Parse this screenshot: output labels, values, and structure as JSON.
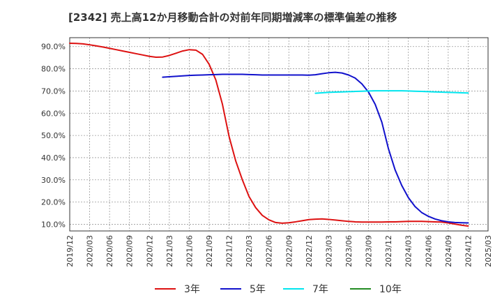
{
  "chart_data": {
    "type": "line",
    "title": "[2342]  売上高12か月移動合計の対前年同期増減率の標準偏差の推移",
    "xlabel": "",
    "ylabel": "",
    "ylim": [
      7,
      94
    ],
    "y_ticks": [
      10,
      20,
      30,
      40,
      50,
      60,
      70,
      80,
      90
    ],
    "y_tick_labels": [
      "10.0%",
      "20.0%",
      "30.0%",
      "40.0%",
      "50.0%",
      "60.0%",
      "70.0%",
      "80.0%",
      "90.0%"
    ],
    "x_ticks": [
      "2019/12",
      "2020/03",
      "2020/06",
      "2020/09",
      "2020/12",
      "2021/03",
      "2021/06",
      "2021/09",
      "2021/12",
      "2022/03",
      "2022/06",
      "2022/09",
      "2022/12",
      "2023/03",
      "2023/06",
      "2023/09",
      "2023/12",
      "2024/03",
      "2024/06",
      "2024/09",
      "2024/12",
      "2025/03"
    ],
    "series": [
      {
        "name": "3年",
        "color": "#dd1111",
        "points": [
          [
            "2019/12",
            91.5
          ],
          [
            "2020/01",
            91.4
          ],
          [
            "2020/02",
            91.2
          ],
          [
            "2020/03",
            90.8
          ],
          [
            "2020/04",
            90.3
          ],
          [
            "2020/05",
            89.8
          ],
          [
            "2020/06",
            89.2
          ],
          [
            "2020/07",
            88.6
          ],
          [
            "2020/08",
            88.0
          ],
          [
            "2020/09",
            87.4
          ],
          [
            "2020/10",
            86.8
          ],
          [
            "2020/11",
            86.2
          ],
          [
            "2020/12",
            85.6
          ],
          [
            "2021/01",
            85.2
          ],
          [
            "2021/02",
            85.3
          ],
          [
            "2021/03",
            86.0
          ],
          [
            "2021/04",
            87.0
          ],
          [
            "2021/05",
            88.0
          ],
          [
            "2021/06",
            88.6
          ],
          [
            "2021/07",
            88.4
          ],
          [
            "2021/08",
            86.5
          ],
          [
            "2021/09",
            82.0
          ],
          [
            "2021/10",
            75.0
          ],
          [
            "2021/11",
            64.0
          ],
          [
            "2021/12",
            49.5
          ],
          [
            "2022/01",
            38.5
          ],
          [
            "2022/02",
            30.0
          ],
          [
            "2022/03",
            22.5
          ],
          [
            "2022/04",
            17.5
          ],
          [
            "2022/05",
            14.0
          ],
          [
            "2022/06",
            12.0
          ],
          [
            "2022/07",
            10.8
          ],
          [
            "2022/08",
            10.5
          ],
          [
            "2022/09",
            10.7
          ],
          [
            "2022/10",
            11.1
          ],
          [
            "2022/11",
            11.6
          ],
          [
            "2022/12",
            12.1
          ],
          [
            "2023/01",
            12.3
          ],
          [
            "2023/02",
            12.4
          ],
          [
            "2023/03",
            12.2
          ],
          [
            "2023/04",
            11.9
          ],
          [
            "2023/05",
            11.6
          ],
          [
            "2023/06",
            11.3
          ],
          [
            "2023/07",
            11.1
          ],
          [
            "2023/08",
            11.0
          ],
          [
            "2023/09",
            11.0
          ],
          [
            "2023/10",
            11.0
          ],
          [
            "2023/11",
            11.0
          ],
          [
            "2023/12",
            11.1
          ],
          [
            "2024/01",
            11.1
          ],
          [
            "2024/02",
            11.2
          ],
          [
            "2024/03",
            11.3
          ],
          [
            "2024/04",
            11.3
          ],
          [
            "2024/05",
            11.3
          ],
          [
            "2024/06",
            11.2
          ],
          [
            "2024/07",
            11.1
          ],
          [
            "2024/08",
            11.0
          ],
          [
            "2024/09",
            10.6
          ],
          [
            "2024/10",
            10.1
          ],
          [
            "2024/11",
            9.6
          ],
          [
            "2024/12",
            9.2
          ]
        ]
      },
      {
        "name": "5年",
        "color": "#1111cc",
        "points": [
          [
            "2021/02",
            76.2
          ],
          [
            "2021/03",
            76.4
          ],
          [
            "2021/04",
            76.6
          ],
          [
            "2021/05",
            76.8
          ],
          [
            "2021/06",
            77.0
          ],
          [
            "2021/07",
            77.1
          ],
          [
            "2021/08",
            77.2
          ],
          [
            "2021/09",
            77.3
          ],
          [
            "2021/10",
            77.4
          ],
          [
            "2021/11",
            77.5
          ],
          [
            "2021/12",
            77.5
          ],
          [
            "2022/01",
            77.5
          ],
          [
            "2022/02",
            77.5
          ],
          [
            "2022/03",
            77.4
          ],
          [
            "2022/04",
            77.3
          ],
          [
            "2022/05",
            77.2
          ],
          [
            "2022/06",
            77.2
          ],
          [
            "2022/07",
            77.2
          ],
          [
            "2022/08",
            77.2
          ],
          [
            "2022/09",
            77.2
          ],
          [
            "2022/10",
            77.2
          ],
          [
            "2022/11",
            77.2
          ],
          [
            "2022/12",
            77.1
          ],
          [
            "2023/01",
            77.3
          ],
          [
            "2023/02",
            77.8
          ],
          [
            "2023/03",
            78.2
          ],
          [
            "2023/04",
            78.4
          ],
          [
            "2023/05",
            78.1
          ],
          [
            "2023/06",
            77.2
          ],
          [
            "2023/07",
            75.8
          ],
          [
            "2023/08",
            73.2
          ],
          [
            "2023/09",
            69.5
          ],
          [
            "2023/10",
            64.0
          ],
          [
            "2023/11",
            56.0
          ],
          [
            "2023/12",
            44.0
          ],
          [
            "2024/01",
            34.5
          ],
          [
            "2024/02",
            27.5
          ],
          [
            "2024/03",
            22.0
          ],
          [
            "2024/04",
            18.0
          ],
          [
            "2024/05",
            15.3
          ],
          [
            "2024/06",
            13.6
          ],
          [
            "2024/07",
            12.4
          ],
          [
            "2024/08",
            11.6
          ],
          [
            "2024/09",
            11.1
          ],
          [
            "2024/10",
            10.8
          ],
          [
            "2024/11",
            10.7
          ],
          [
            "2024/12",
            10.6
          ]
        ]
      },
      {
        "name": "7年",
        "color": "#00e5ee",
        "points": [
          [
            "2023/01",
            69.0
          ],
          [
            "2023/02",
            69.2
          ],
          [
            "2023/03",
            69.4
          ],
          [
            "2023/04",
            69.5
          ],
          [
            "2023/05",
            69.6
          ],
          [
            "2023/06",
            69.7
          ],
          [
            "2023/07",
            69.8
          ],
          [
            "2023/08",
            69.9
          ],
          [
            "2023/09",
            70.0
          ],
          [
            "2023/10",
            70.1
          ],
          [
            "2023/11",
            70.1
          ],
          [
            "2023/12",
            70.1
          ],
          [
            "2024/01",
            70.1
          ],
          [
            "2024/02",
            70.1
          ],
          [
            "2024/03",
            70.0
          ],
          [
            "2024/04",
            69.9
          ],
          [
            "2024/05",
            69.8
          ],
          [
            "2024/06",
            69.7
          ],
          [
            "2024/07",
            69.6
          ],
          [
            "2024/08",
            69.5
          ],
          [
            "2024/09",
            69.4
          ],
          [
            "2024/10",
            69.3
          ],
          [
            "2024/11",
            69.2
          ],
          [
            "2024/12",
            69.1
          ]
        ]
      },
      {
        "name": "10年",
        "color": "#228b22",
        "points": []
      }
    ],
    "grid": true,
    "legend_position": "bottom"
  }
}
